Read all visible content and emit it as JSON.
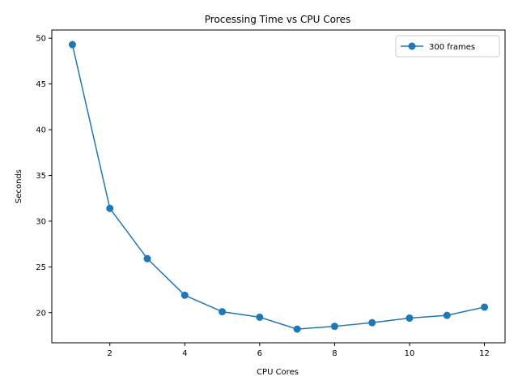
{
  "chart_data": {
    "type": "line",
    "title": "Processing Time vs CPU Cores",
    "xlabel": "CPU Cores",
    "ylabel": "Seconds",
    "xlim": [
      0.45,
      12.55
    ],
    "ylim": [
      16.7,
      50.9
    ],
    "xticks": [
      2,
      4,
      6,
      8,
      10,
      12
    ],
    "yticks": [
      20,
      25,
      30,
      35,
      40,
      45,
      50
    ],
    "grid": false,
    "legend_position": "top-right",
    "series": [
      {
        "name": "300 frames",
        "color": "#1f77b4",
        "marker": "circle",
        "x": [
          1,
          2,
          3,
          4,
          5,
          6,
          7,
          8,
          9,
          10,
          11,
          12
        ],
        "y": [
          49.3,
          31.4,
          25.9,
          21.9,
          20.1,
          19.5,
          18.2,
          18.5,
          18.9,
          19.4,
          19.7,
          20.6
        ]
      }
    ]
  }
}
